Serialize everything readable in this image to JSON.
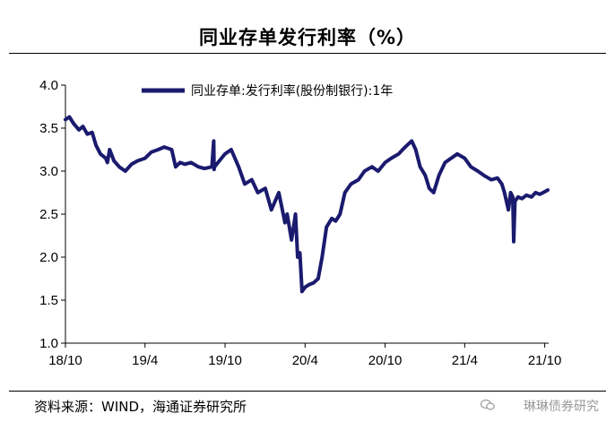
{
  "title": "同业存单发行利率（%）",
  "source": "资料来源：WIND，海通证券研究所",
  "watermark": "琳琳债券研究",
  "colors": {
    "series": "#1a1a6e",
    "axis": "#000000",
    "text": "#000000",
    "watermark": "#9a9a9a"
  },
  "chart_data": {
    "type": "line",
    "title": "同业存单发行利率（%）",
    "xlabel": "",
    "ylabel": "",
    "ylim": [
      1.0,
      4.0
    ],
    "yticks": [
      "1.0",
      "1.5",
      "2.0",
      "2.5",
      "3.0",
      "3.5",
      "4.0"
    ],
    "xticks": [
      "18/10",
      "19/4",
      "19/10",
      "20/4",
      "20/10",
      "21/4",
      "21/10"
    ],
    "grid": false,
    "legend": "top-center",
    "series": [
      {
        "name": "同业存单:发行利率(股份制银行):1年",
        "x": [
          "2018-10-01",
          "2018-10-10",
          "2018-10-20",
          "2018-11-01",
          "2018-11-10",
          "2018-11-20",
          "2018-12-01",
          "2018-12-10",
          "2018-12-20",
          "2019-01-01",
          "2019-01-05",
          "2019-01-10",
          "2019-01-20",
          "2019-02-01",
          "2019-02-15",
          "2019-03-01",
          "2019-03-15",
          "2019-04-01",
          "2019-04-15",
          "2019-05-01",
          "2019-05-15",
          "2019-06-01",
          "2019-06-10",
          "2019-06-20",
          "2019-07-01",
          "2019-07-15",
          "2019-08-01",
          "2019-08-15",
          "2019-09-01",
          "2019-09-05",
          "2019-09-06",
          "2019-09-07",
          "2019-09-15",
          "2019-10-01",
          "2019-10-15",
          "2019-11-01",
          "2019-11-15",
          "2019-12-01",
          "2019-12-15",
          "2020-01-01",
          "2020-01-15",
          "2020-02-01",
          "2020-02-15",
          "2020-02-20",
          "2020-03-01",
          "2020-03-10",
          "2020-03-15",
          "2020-03-20",
          "2020-03-25",
          "2020-04-01",
          "2020-04-10",
          "2020-04-20",
          "2020-05-01",
          "2020-05-10",
          "2020-05-20",
          "2020-06-01",
          "2020-06-10",
          "2020-06-20",
          "2020-07-01",
          "2020-07-15",
          "2020-08-01",
          "2020-08-15",
          "2020-09-01",
          "2020-09-15",
          "2020-10-01",
          "2020-10-15",
          "2020-11-01",
          "2020-11-10",
          "2020-11-20",
          "2020-12-01",
          "2020-12-10",
          "2020-12-20",
          "2021-01-01",
          "2021-01-10",
          "2021-01-20",
          "2021-02-01",
          "2021-02-15",
          "2021-03-01",
          "2021-03-15",
          "2021-04-01",
          "2021-04-15",
          "2021-05-01",
          "2021-05-15",
          "2021-06-01",
          "2021-06-15",
          "2021-06-25",
          "2021-07-01",
          "2021-07-10",
          "2021-07-15",
          "2021-07-20",
          "2021-07-22",
          "2021-07-25",
          "2021-08-01",
          "2021-08-10",
          "2021-08-20",
          "2021-09-01",
          "2021-09-10",
          "2021-09-20",
          "2021-10-01",
          "2021-10-08"
        ],
        "values": [
          3.6,
          3.63,
          3.55,
          3.48,
          3.52,
          3.43,
          3.45,
          3.3,
          3.2,
          3.15,
          3.1,
          3.25,
          3.12,
          3.05,
          3.0,
          3.08,
          3.12,
          3.15,
          3.22,
          3.25,
          3.28,
          3.25,
          3.05,
          3.1,
          3.08,
          3.1,
          3.05,
          3.03,
          3.05,
          3.35,
          3.02,
          3.05,
          3.1,
          3.2,
          3.25,
          3.05,
          2.85,
          2.9,
          2.75,
          2.8,
          2.55,
          2.75,
          2.4,
          2.5,
          2.2,
          2.5,
          2.0,
          2.05,
          1.6,
          1.65,
          1.68,
          1.7,
          1.75,
          2.0,
          2.35,
          2.45,
          2.42,
          2.5,
          2.75,
          2.85,
          2.9,
          3.0,
          3.05,
          3.0,
          3.1,
          3.15,
          3.2,
          3.25,
          3.3,
          3.35,
          3.25,
          3.05,
          2.95,
          2.8,
          2.75,
          2.95,
          3.1,
          3.15,
          3.2,
          3.15,
          3.05,
          3.0,
          2.95,
          2.9,
          2.92,
          2.85,
          2.75,
          2.55,
          2.75,
          2.7,
          2.18,
          2.65,
          2.7,
          2.68,
          2.72,
          2.7,
          2.75,
          2.73,
          2.76,
          2.78
        ]
      }
    ]
  }
}
